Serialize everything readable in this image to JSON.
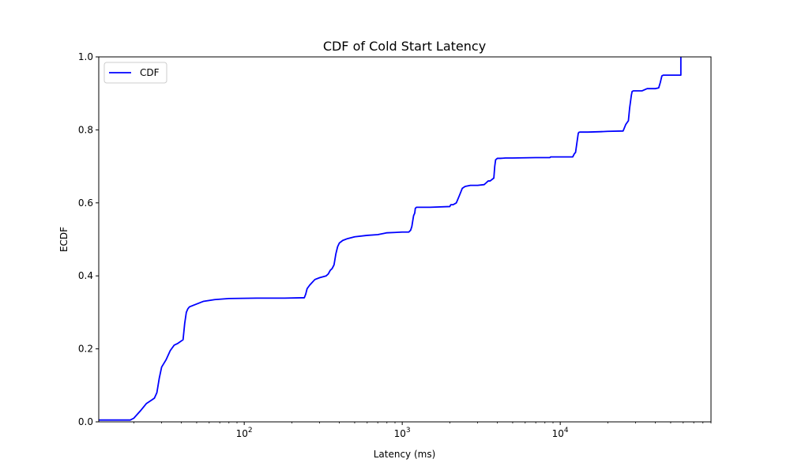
{
  "chart_data": {
    "type": "line",
    "title": "CDF of Cold Start Latency",
    "xlabel": "Latency (ms)",
    "ylabel": "ECDF",
    "xscale": "log",
    "xlim": [
      12,
      90000
    ],
    "ylim": [
      0,
      1
    ],
    "grid": false,
    "legend": {
      "placement": "top-left"
    },
    "x_tick_labels": [
      {
        "base": "10",
        "exp": "2",
        "value": 100
      },
      {
        "base": "10",
        "exp": "3",
        "value": 1000
      },
      {
        "base": "10",
        "exp": "4",
        "value": 10000
      }
    ],
    "y_ticks": [
      {
        "value": 0.0,
        "label": "0.0"
      },
      {
        "value": 0.2,
        "label": "0.2"
      },
      {
        "value": 0.4,
        "label": "0.4"
      },
      {
        "value": 0.6,
        "label": "0.6"
      },
      {
        "value": 0.8,
        "label": "0.8"
      },
      {
        "value": 1.0,
        "label": "1.0"
      }
    ],
    "series": [
      {
        "name": "CDF",
        "color": "#0000ff",
        "x": [
          12,
          19,
          20,
          22,
          24,
          26,
          27,
          28,
          29,
          30,
          32,
          34,
          36,
          38,
          41,
          42,
          43,
          44,
          45,
          48,
          55,
          65,
          80,
          120,
          180,
          230,
          240,
          245,
          250,
          260,
          280,
          300,
          330,
          340,
          350,
          360,
          370,
          380,
          390,
          400,
          420,
          450,
          500,
          600,
          700,
          780,
          800,
          900,
          1000,
          1100,
          1130,
          1150,
          1180,
          1200,
          1210,
          1230,
          1500,
          2000,
          2030,
          2100,
          2200,
          2300,
          2400,
          2500,
          2700,
          3000,
          3300,
          3400,
          3500,
          3600,
          3800,
          3850,
          3900,
          4000,
          4200,
          4500,
          5000,
          7000,
          8600,
          8700,
          12000,
          12300,
          12500,
          13000,
          13100,
          13300,
          15000,
          18000,
          20000,
          25000,
          26000,
          26500,
          27000,
          27500,
          28000,
          28200,
          28500,
          29000,
          30000,
          33000,
          35000,
          35500,
          40000,
          42000,
          43000,
          44000,
          45000,
          50000,
          55000,
          58000,
          58000
        ],
        "y": [
          0.005,
          0.005,
          0.01,
          0.03,
          0.05,
          0.06,
          0.065,
          0.08,
          0.12,
          0.15,
          0.17,
          0.195,
          0.21,
          0.215,
          0.225,
          0.27,
          0.3,
          0.31,
          0.315,
          0.32,
          0.33,
          0.335,
          0.338,
          0.339,
          0.339,
          0.34,
          0.34,
          0.35,
          0.365,
          0.375,
          0.39,
          0.395,
          0.4,
          0.405,
          0.415,
          0.42,
          0.43,
          0.46,
          0.48,
          0.49,
          0.497,
          0.502,
          0.507,
          0.511,
          0.513,
          0.517,
          0.518,
          0.519,
          0.52,
          0.52,
          0.525,
          0.535,
          0.565,
          0.572,
          0.585,
          0.588,
          0.588,
          0.59,
          0.595,
          0.595,
          0.6,
          0.62,
          0.64,
          0.645,
          0.648,
          0.648,
          0.65,
          0.655,
          0.66,
          0.66,
          0.668,
          0.7,
          0.718,
          0.722,
          0.722,
          0.723,
          0.723,
          0.724,
          0.724,
          0.726,
          0.726,
          0.735,
          0.738,
          0.79,
          0.793,
          0.794,
          0.794,
          0.795,
          0.796,
          0.797,
          0.815,
          0.82,
          0.825,
          0.86,
          0.885,
          0.895,
          0.905,
          0.907,
          0.907,
          0.907,
          0.912,
          0.913,
          0.913,
          0.915,
          0.93,
          0.948,
          0.95,
          0.95,
          0.95,
          0.95,
          1.0
        ]
      }
    ]
  }
}
